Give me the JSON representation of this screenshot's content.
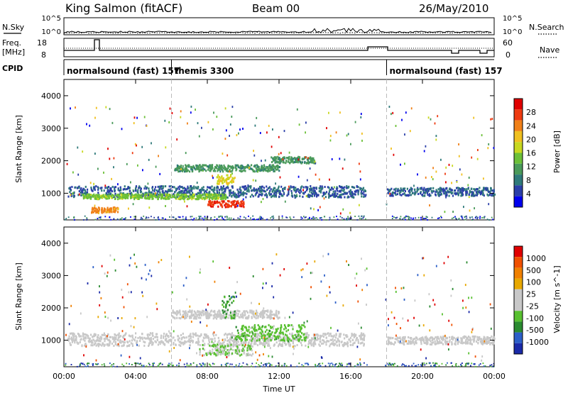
{
  "header": {
    "station": "King Salmon (fitACF)",
    "beam": "Beam 00",
    "date": "26/May/2010"
  },
  "noise_panel": {
    "left_label": "N.Sky",
    "right_label": "N.Search",
    "ticks_left": [
      "10^5",
      "10^0"
    ],
    "ticks_right": [
      "10^5",
      "10^0"
    ]
  },
  "freq_panel": {
    "left_label_1": "Freq.",
    "left_label_2": "[MHz]",
    "right_label": "Nave",
    "ticks_left": [
      "18",
      "8"
    ],
    "ticks_right": [
      "60",
      "0"
    ]
  },
  "cpid": {
    "label": "CPID",
    "segments": [
      {
        "name": "normalsound (fast) 157",
        "start_hour": 0.0
      },
      {
        "name": "themis 3300",
        "start_hour": 6.0
      },
      {
        "name": "normalsound (fast) 157",
        "start_hour": 18.0
      }
    ]
  },
  "chart_data": [
    {
      "type": "heatmap",
      "ylabel": "Slant Range [km]",
      "yticks": [
        "4000",
        "3000",
        "2000",
        "1000"
      ],
      "ylim": [
        180,
        4500
      ],
      "xlim": [
        0,
        24
      ],
      "colorbar_label": "Power [dB]",
      "colorbar_ticks": [
        "28",
        "24",
        "20",
        "16",
        "12",
        "8",
        "4"
      ],
      "colorbar_colors": [
        "#0000ee",
        "#2b3fa8",
        "#2f7a7a",
        "#4a9a5a",
        "#6cc038",
        "#c8d820",
        "#f0c020",
        "#f08018",
        "#ee3a10",
        "#e00000"
      ],
      "colorbar_range": [
        0,
        30
      ],
      "data_gap_hours": [
        [
          16.9,
          17.9
        ]
      ],
      "echo_regions": [
        {
          "t": [
            0.2,
            16.8
          ],
          "range_km": [
            900,
            1250
          ],
          "power_db": 6
        },
        {
          "t": [
            1.0,
            9.0
          ],
          "range_km": [
            850,
            1000
          ],
          "power_db": 14
        },
        {
          "t": [
            1.5,
            3.0
          ],
          "range_km": [
            430,
            600
          ],
          "power_db": 22
        },
        {
          "t": [
            8.0,
            10.0
          ],
          "range_km": [
            600,
            800
          ],
          "power_db": 26
        },
        {
          "t": [
            6.0,
            12.0
          ],
          "range_km": [
            1700,
            1900
          ],
          "power_db": 10
        },
        {
          "t": [
            8.5,
            9.5
          ],
          "range_km": [
            1300,
            1600
          ],
          "power_db": 18
        },
        {
          "t": [
            11.5,
            14.0
          ],
          "range_km": [
            1950,
            2150
          ],
          "power_db": 10
        },
        {
          "t": [
            18.0,
            24.0
          ],
          "range_km": [
            950,
            1200
          ],
          "power_db": 6
        }
      ]
    },
    {
      "type": "heatmap",
      "ylabel": "Slant Range [km]",
      "yticks": [
        "4000",
        "3000",
        "2000",
        "1000"
      ],
      "ylim": [
        180,
        4500
      ],
      "xlim": [
        0,
        24
      ],
      "xlabel": "Time UT",
      "xticks": [
        "00:00",
        "04:00",
        "08:00",
        "12:00",
        "16:00",
        "20:00",
        "00:00"
      ],
      "colorbar_label": "Velocity [m s^-1]",
      "colorbar_ticks": [
        "1000",
        "500",
        "100",
        "25",
        "-25",
        "-100",
        "-500",
        "-1000"
      ],
      "colorbar_colors": [
        "#1a2aa8",
        "#2c5fc8",
        "#2a8a30",
        "#58c030",
        "#c8c8c8",
        "#c8c8c8",
        "#e8a800",
        "#f08000",
        "#f05000",
        "#e00000"
      ],
      "colorbar_range": [
        -1000,
        1000
      ],
      "data_gap_hours": [
        [
          16.9,
          17.9
        ]
      ],
      "echo_regions": [
        {
          "t": [
            0.2,
            16.8
          ],
          "range_km": [
            850,
            1250
          ],
          "velocity": 0
        },
        {
          "t": [
            6.0,
            12.0
          ],
          "range_km": [
            1700,
            1950
          ],
          "velocity": 0
        },
        {
          "t": [
            7.5,
            10.5
          ],
          "range_km": [
            560,
            900
          ],
          "velocity": -200
        },
        {
          "t": [
            9.5,
            13.5
          ],
          "range_km": [
            1000,
            1500
          ],
          "velocity": -300
        },
        {
          "t": [
            8.8,
            9.5
          ],
          "range_km": [
            1700,
            2400
          ],
          "velocity": -400
        },
        {
          "t": [
            18.0,
            24.0
          ],
          "range_km": [
            900,
            1150
          ],
          "velocity": 0
        }
      ]
    }
  ]
}
